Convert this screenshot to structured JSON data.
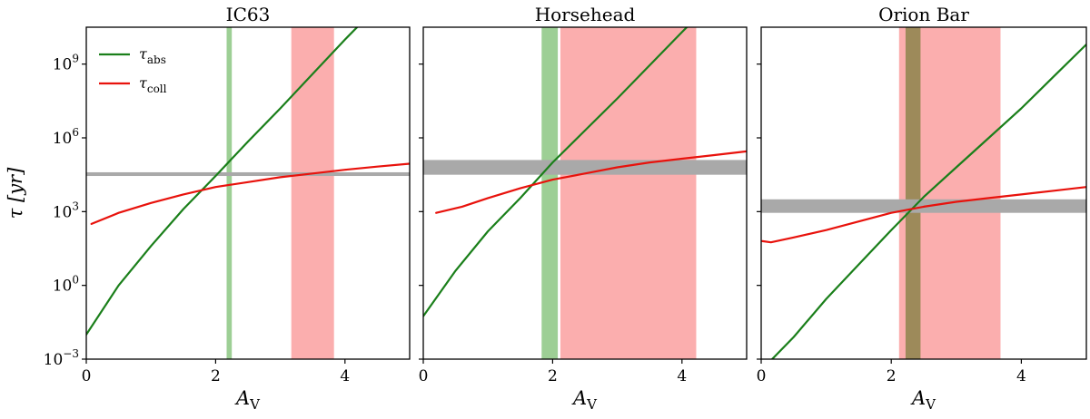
{
  "chart_data": [
    {
      "type": "line",
      "title": "IC63",
      "xlabel": "A_V",
      "ylabel": "τ [yr]",
      "xlim": [
        0,
        5
      ],
      "ylim_log10": [
        -3,
        10.5
      ],
      "y_scale": "log",
      "xticks": [
        0,
        2,
        4
      ],
      "yticks_log10": [
        -3,
        0,
        3,
        6,
        9
      ],
      "legend": {
        "placement": "top-left",
        "entries": [
          "τ_abs",
          "τ_coll"
        ]
      },
      "series": [
        {
          "name": "τ_abs",
          "color": "#1a7f1a",
          "x": [
            0,
            0.5,
            1,
            1.5,
            2,
            2.5,
            3,
            3.5,
            4,
            4.45
          ],
          "log10_y": [
            -2.0,
            0.0,
            1.6,
            3.1,
            4.45,
            5.85,
            7.2,
            8.6,
            10.0,
            11.2
          ]
        },
        {
          "name": "τ_coll",
          "color": "#e8120c",
          "x": [
            0.08,
            0.5,
            1,
            1.5,
            2,
            2.5,
            3,
            3.5,
            4,
            4.5,
            5
          ],
          "log10_y": [
            2.5,
            2.95,
            3.35,
            3.7,
            4.0,
            4.2,
            4.4,
            4.55,
            4.7,
            4.83,
            4.95
          ]
        }
      ],
      "bands": [
        {
          "orientation": "vertical",
          "from": 2.17,
          "to": 2.25,
          "color": "#9dcf95"
        },
        {
          "orientation": "vertical",
          "from": 3.17,
          "to": 3.83,
          "color": "#fbaeae"
        },
        {
          "orientation": "horizontal",
          "from_log10": 4.45,
          "to_log10": 4.6,
          "color": "#a9a9a9"
        }
      ]
    },
    {
      "type": "line",
      "title": "Horsehead",
      "xlabel": "A_V",
      "xlim": [
        0,
        5
      ],
      "ylim_log10": [
        -3,
        10.5
      ],
      "y_scale": "log",
      "xticks": [
        0,
        2,
        4
      ],
      "series": [
        {
          "name": "τ_abs",
          "color": "#1a7f1a",
          "x": [
            0,
            0.5,
            1,
            1.5,
            2,
            2.5,
            3,
            3.5,
            4,
            4.3
          ],
          "log10_y": [
            -1.25,
            0.6,
            2.2,
            3.55,
            5.0,
            6.3,
            7.6,
            8.95,
            10.3,
            11.1
          ]
        },
        {
          "name": "τ_coll",
          "color": "#e8120c",
          "x": [
            0.2,
            0.6,
            1,
            1.5,
            2,
            2.5,
            3,
            3.5,
            4,
            4.5,
            5
          ],
          "log10_y": [
            2.95,
            3.2,
            3.55,
            3.95,
            4.3,
            4.55,
            4.8,
            5.0,
            5.15,
            5.3,
            5.45
          ]
        }
      ],
      "bands": [
        {
          "orientation": "vertical",
          "from": 1.83,
          "to": 2.08,
          "color": "#9dcf95"
        },
        {
          "orientation": "vertical",
          "from": 2.12,
          "to": 4.22,
          "color": "#fbaeae"
        },
        {
          "orientation": "horizontal",
          "from_log10": 4.5,
          "to_log10": 5.1,
          "color": "#a9a9a9"
        }
      ]
    },
    {
      "type": "line",
      "title": "Orion Bar",
      "xlabel": "A_V",
      "xlim": [
        0,
        5
      ],
      "ylim_log10": [
        -3,
        10.5
      ],
      "y_scale": "log",
      "xticks": [
        0,
        2,
        4
      ],
      "series": [
        {
          "name": "τ_abs",
          "color": "#1a7f1a",
          "x": [
            0.15,
            0.5,
            1,
            1.5,
            2,
            2.5,
            3,
            3.5,
            4,
            4.5,
            5
          ],
          "log10_y": [
            -3.05,
            -2.1,
            -0.55,
            0.85,
            2.25,
            3.6,
            4.8,
            6.0,
            7.2,
            8.5,
            9.8
          ]
        },
        {
          "name": "τ_coll",
          "color": "#e8120c",
          "x": [
            0.02,
            0.15,
            0.5,
            1,
            1.5,
            2,
            2.5,
            3,
            3.5,
            4,
            4.5,
            5
          ],
          "log10_y": [
            1.8,
            1.75,
            1.95,
            2.25,
            2.6,
            2.95,
            3.2,
            3.4,
            3.55,
            3.7,
            3.85,
            4.0
          ]
        }
      ],
      "bands": [
        {
          "orientation": "vertical",
          "from": 2.12,
          "to": 3.68,
          "color": "#fbaeae"
        },
        {
          "orientation": "vertical",
          "from": 2.22,
          "to": 2.45,
          "color": "#9d8a5a"
        },
        {
          "orientation": "horizontal",
          "from_log10": 2.95,
          "to_log10": 3.5,
          "color": "#a9a9a9"
        }
      ]
    }
  ]
}
